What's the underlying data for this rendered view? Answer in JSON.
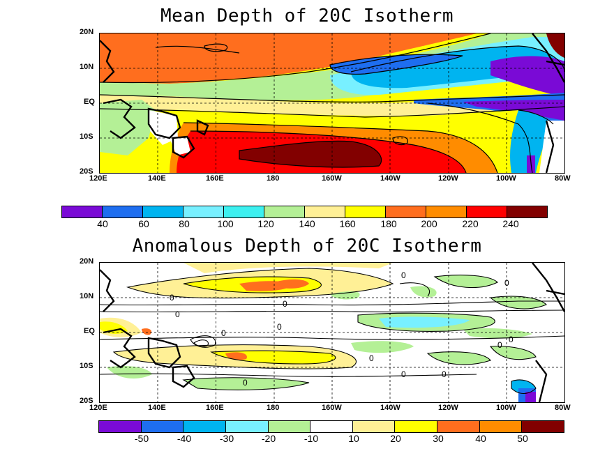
{
  "panels": [
    {
      "title": "Mean Depth of 20C Isotherm",
      "lat_labels": [
        "20N",
        "10N",
        "EQ",
        "10S",
        "20S"
      ],
      "lon_labels": [
        "120E",
        "140E",
        "160E",
        "180",
        "160W",
        "140W",
        "120W",
        "100W",
        "80W"
      ],
      "contour_labels": []
    },
    {
      "title": "Anomalous Depth of 20C Isotherm",
      "lat_labels": [
        "20N",
        "10N",
        "EQ",
        "10S",
        "20S"
      ],
      "lon_labels": [
        "120E",
        "140E",
        "160E",
        "180",
        "160W",
        "140W",
        "120W",
        "100W",
        "80W"
      ],
      "contour_labels": [
        "0",
        "0",
        "0",
        "0",
        "0",
        "0",
        "0",
        "0",
        "0",
        "0",
        "0",
        "0",
        "0"
      ]
    }
  ],
  "colorbars": [
    {
      "labels": [
        "40",
        "60",
        "80",
        "100",
        "120",
        "140",
        "160",
        "180",
        "200",
        "220",
        "240"
      ],
      "colors": [
        "#7a0ad6",
        "#1e6ef0",
        "#00b4f0",
        "#78f0ff",
        "#3cf0f0",
        "#b4f096",
        "#fff096",
        "#ffff00",
        "#ff6e1e",
        "#ff8c00",
        "#ff0000",
        "#820000"
      ]
    },
    {
      "labels": [
        "-50",
        "-40",
        "-30",
        "-20",
        "-10",
        "10",
        "20",
        "30",
        "40",
        "50"
      ],
      "colors": [
        "#7a0ad6",
        "#1e6ef0",
        "#00b4f0",
        "#78f0ff",
        "#b4f096",
        "#ffffff",
        "#fff096",
        "#ffff00",
        "#ff6e1e",
        "#ff8c00",
        "#820000"
      ]
    }
  ]
}
